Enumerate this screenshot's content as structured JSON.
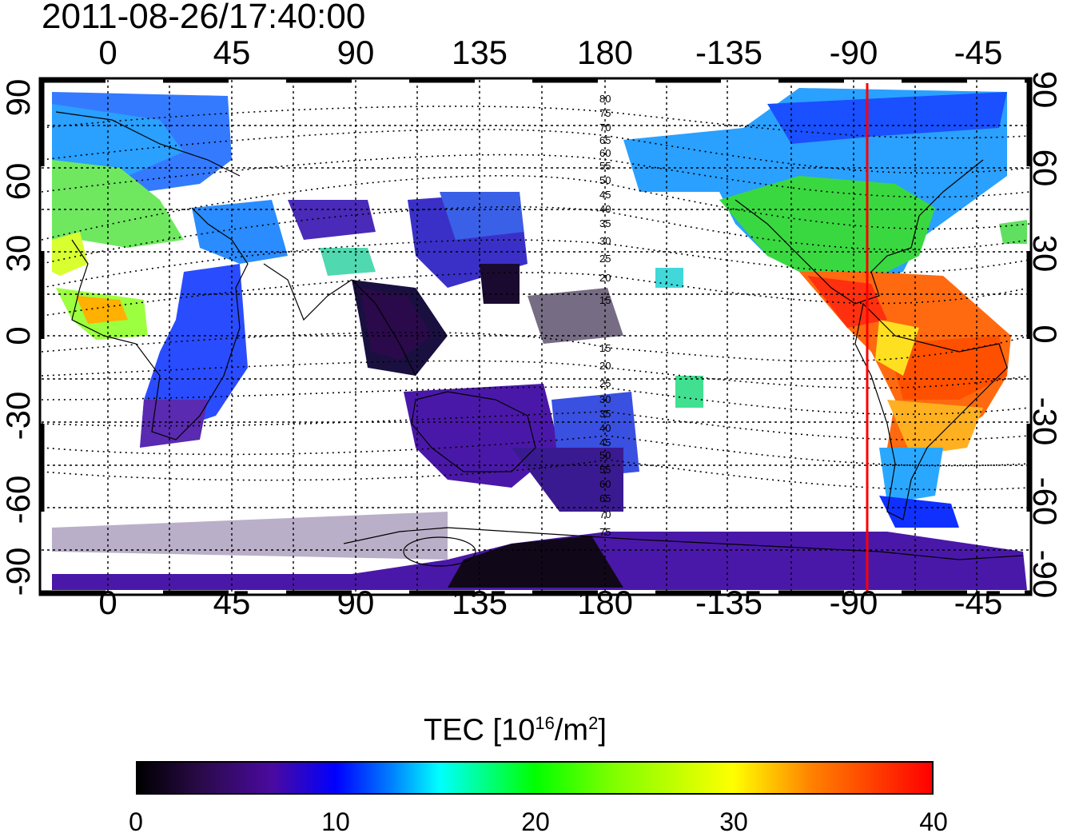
{
  "title": "2011-08-26/17:40:00",
  "axes": {
    "top_ticks": [
      "0",
      "45",
      "90",
      "135",
      "180",
      "-135",
      "-90",
      "-45"
    ],
    "bottom_ticks": [
      "0",
      "45",
      "90",
      "135",
      "180",
      "-135",
      "-90",
      "-45"
    ],
    "left_ticks": [
      "90",
      "60",
      "30",
      "0",
      "-30",
      "-60",
      "-90"
    ],
    "right_ticks": [
      "90",
      "60",
      "30",
      "0",
      "-30",
      "-60",
      "-90"
    ]
  },
  "contour_labels_upper": [
    "80",
    "75",
    "70",
    "65",
    "60",
    "55",
    "50",
    "45",
    "40",
    "35",
    "30",
    "25",
    "20",
    "15"
  ],
  "contour_labels_lower": [
    "15",
    "20",
    "25",
    "30",
    "35",
    "40",
    "45",
    "50",
    "55",
    "60",
    "65",
    "70",
    "75"
  ],
  "colorbar": {
    "label_main": "TEC  [10",
    "label_sup1": "16",
    "label_mid": "/m",
    "label_sup2": "2",
    "label_end": "]",
    "ticks": [
      "0",
      "10",
      "20",
      "30",
      "40"
    ],
    "range": [
      0,
      40
    ]
  },
  "marker_line": {
    "longitude": -85,
    "color": "#ff0000"
  },
  "colors": {
    "frame": "#000000",
    "grid": "#000000"
  }
}
